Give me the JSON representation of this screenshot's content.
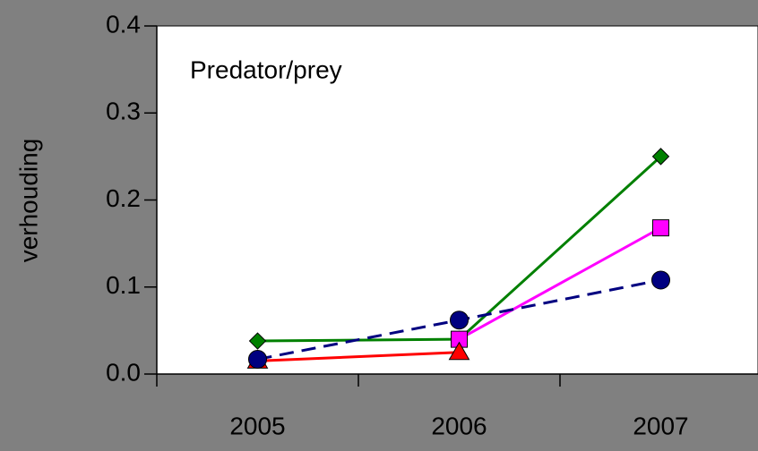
{
  "chart_data": {
    "type": "line",
    "title": "Predator/prey",
    "y_label": "verhouding",
    "categories": [
      "2005",
      "2006",
      "2007"
    ],
    "series": [
      {
        "color": "#008000",
        "marker": "diamond",
        "dashed": false,
        "values": [
          0.038,
          0.04,
          0.25
        ]
      },
      {
        "color": "#ff00ff",
        "marker": "square",
        "dashed": false,
        "values": [
          null,
          0.04,
          0.168
        ]
      },
      {
        "color": "#ff0000",
        "marker": "triangle",
        "dashed": false,
        "values": [
          0.015,
          0.025,
          null
        ]
      },
      {
        "color": "#000080",
        "marker": "circle",
        "dashed": true,
        "values": [
          0.017,
          0.062,
          0.108
        ]
      }
    ],
    "ylim": [
      0,
      0.4
    ],
    "yticks": [
      {
        "value": 0,
        "label": "0.0"
      },
      0.1,
      0.2,
      0.3,
      0.4
    ],
    "grid": false
  }
}
